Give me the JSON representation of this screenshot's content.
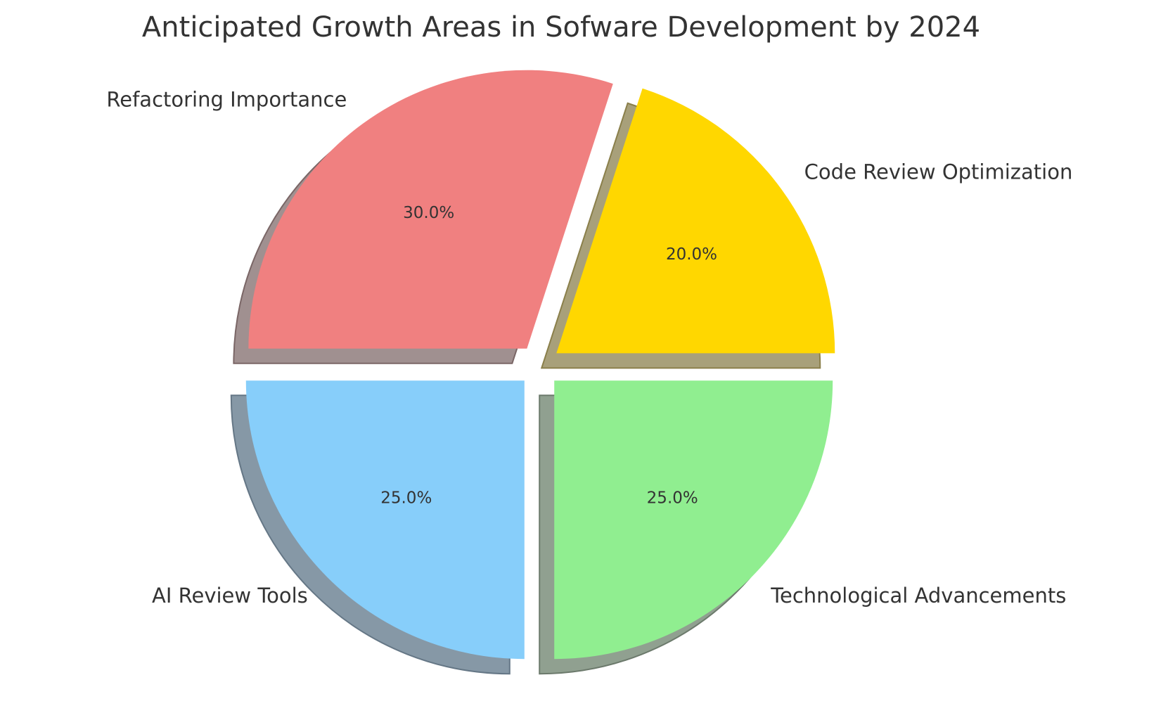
{
  "chart_data": {
    "type": "pie",
    "title": "Anticipated Growth Areas in Sofware Development by 2024",
    "categories": [
      "Technological Advancements",
      "AI Review Tools",
      "Refactoring Importance",
      "Code Review Optimization"
    ],
    "values": [
      25,
      25,
      30,
      20
    ],
    "percent_labels": [
      "25.0%",
      "25.0%",
      "30.0%",
      "20.0%"
    ],
    "colors": [
      "#90EE90",
      "#87CEFA",
      "#F08080",
      "#FFD700"
    ],
    "shadow_colors": [
      "#90A090",
      "#8698A6",
      "#A09090",
      "#A8A07A"
    ],
    "shadow_stroke": [
      "#6C7A6C",
      "#657786",
      "#7A6666",
      "#8A7F4A"
    ],
    "start_angle_deg": 0,
    "direction": "clockwise",
    "exploded": true,
    "shadow": true
  }
}
